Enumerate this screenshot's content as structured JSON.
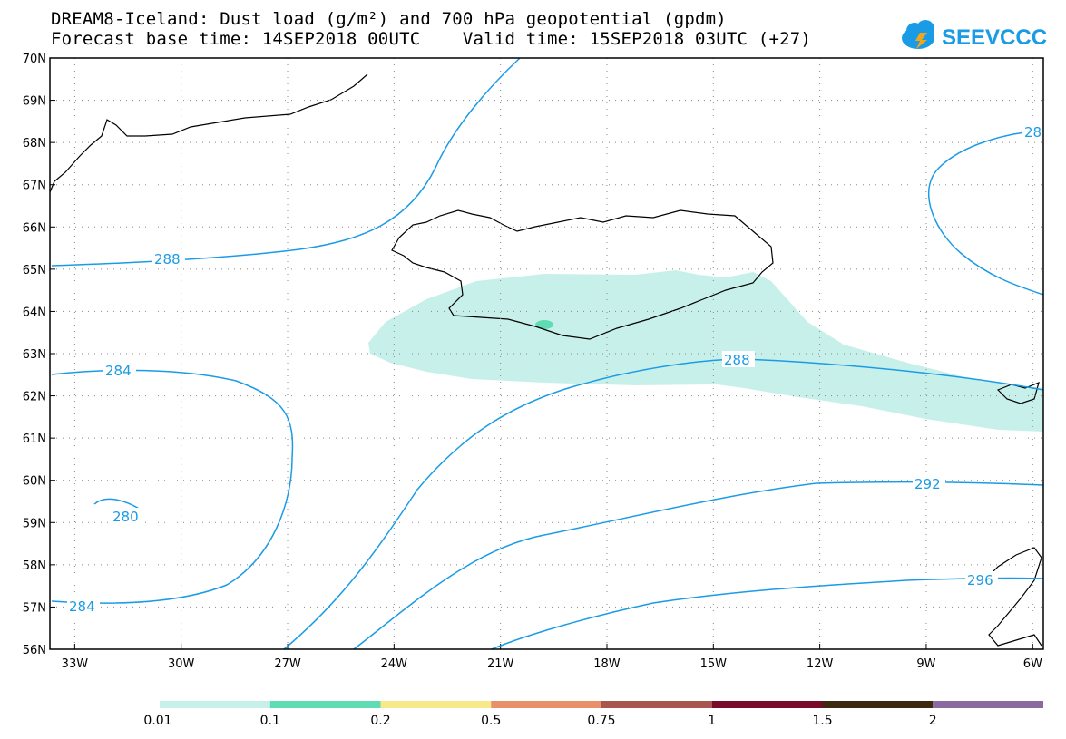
{
  "header": {
    "title_line1": "DREAM8-Iceland: Dust load (g/m²) and 700 hPa geopotential (gpdm)",
    "title_line2": "Forecast base time: 14SEP2018 00UTC    Valid time: 15SEP2018 03UTC (+27)",
    "logo_text": "SEEVCCC",
    "logo_icon": "cloud-icon",
    "logo_color": "#1a9be6"
  },
  "map": {
    "lat_labels": [
      "70N",
      "69N",
      "68N",
      "67N",
      "66N",
      "65N",
      "64N",
      "63N",
      "62N",
      "61N",
      "60N",
      "59N",
      "58N",
      "57N",
      "56N"
    ],
    "lon_labels": [
      "33W",
      "30W",
      "27W",
      "24W",
      "21W",
      "18W",
      "15W",
      "12W",
      "9W",
      "6W"
    ],
    "contour_color": "#1a9be6",
    "contour_labels": [
      "288",
      "284",
      "280",
      "284",
      "288",
      "292",
      "296",
      "28"
    ],
    "dust_color": "#c8f0ea",
    "dust_high_color": "#5fdcb4"
  },
  "colorbar": {
    "labels": [
      "0.01",
      "0.1",
      "0.2",
      "0.5",
      "0.75",
      "1",
      "1.5",
      "2"
    ],
    "colors": [
      "#c8f0ea",
      "#5fdcb4",
      "#f7e98a",
      "#e8906a",
      "#a8574e",
      "#7a0a2a",
      "#3d2810",
      "#8a6aa0"
    ]
  }
}
